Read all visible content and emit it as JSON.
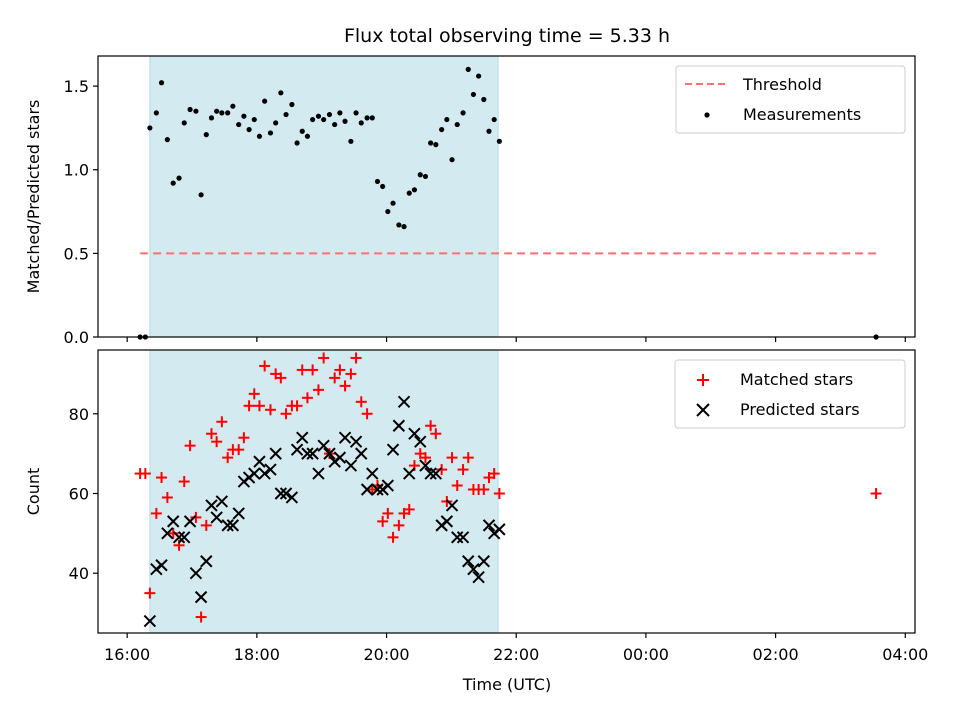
{
  "title": "Flux total observing time = 5.33 h",
  "colors": {
    "band": "#d4eaf1",
    "threshold": "#ff6f6f",
    "matched": "#ff0000",
    "predicted": "#000000",
    "measurement": "#000000"
  },
  "chart_data": [
    {
      "type": "scatter",
      "panel": "top",
      "ylabel": "Matched/Predicted stars",
      "xlabel": "",
      "ylim": [
        0,
        1.68
      ],
      "yticks": [
        0.0,
        0.5,
        1.0,
        1.5
      ],
      "ytick_labels": [
        "0.0",
        "0.5",
        "1.0",
        "1.5"
      ],
      "xlim_hours": [
        15.55,
        28.15
      ],
      "shaded_span_hours": [
        16.35,
        21.72
      ],
      "threshold": {
        "name": "Threshold",
        "y": 0.5,
        "x_start_hours": 16.2,
        "x_end_hours": 27.55,
        "style": "dashed"
      },
      "series": [
        {
          "name": "Measurements",
          "points": [
            [
              16.2,
              0.0
            ],
            [
              16.28,
              0.0
            ],
            [
              16.35,
              1.25
            ],
            [
              16.45,
              1.34
            ],
            [
              16.53,
              1.52
            ],
            [
              16.62,
              1.18
            ],
            [
              16.71,
              0.92
            ],
            [
              16.8,
              0.95
            ],
            [
              16.88,
              1.28
            ],
            [
              16.97,
              1.36
            ],
            [
              17.06,
              1.35
            ],
            [
              17.14,
              0.85
            ],
            [
              17.22,
              1.21
            ],
            [
              17.3,
              1.31
            ],
            [
              17.38,
              1.35
            ],
            [
              17.46,
              1.34
            ],
            [
              17.55,
              1.34
            ],
            [
              17.63,
              1.38
            ],
            [
              17.72,
              1.27
            ],
            [
              17.8,
              1.32
            ],
            [
              17.88,
              1.24
            ],
            [
              17.96,
              1.3
            ],
            [
              18.04,
              1.2
            ],
            [
              18.12,
              1.41
            ],
            [
              18.21,
              1.22
            ],
            [
              18.29,
              1.28
            ],
            [
              18.37,
              1.46
            ],
            [
              18.45,
              1.33
            ],
            [
              18.54,
              1.39
            ],
            [
              18.62,
              1.16
            ],
            [
              18.7,
              1.23
            ],
            [
              18.78,
              1.2
            ],
            [
              18.86,
              1.3
            ],
            [
              18.95,
              1.32
            ],
            [
              19.03,
              1.3
            ],
            [
              19.12,
              1.33
            ],
            [
              19.2,
              1.27
            ],
            [
              19.28,
              1.34
            ],
            [
              19.36,
              1.29
            ],
            [
              19.45,
              1.17
            ],
            [
              19.53,
              1.34
            ],
            [
              19.61,
              1.28
            ],
            [
              19.7,
              1.31
            ],
            [
              19.78,
              1.31
            ],
            [
              19.86,
              0.93
            ],
            [
              19.94,
              0.9
            ],
            [
              20.02,
              0.75
            ],
            [
              20.1,
              0.8
            ],
            [
              20.19,
              0.67
            ],
            [
              20.27,
              0.66
            ],
            [
              20.35,
              0.86
            ],
            [
              20.43,
              0.88
            ],
            [
              20.52,
              0.97
            ],
            [
              20.6,
              0.96
            ],
            [
              20.68,
              1.16
            ],
            [
              20.76,
              1.15
            ],
            [
              20.85,
              1.24
            ],
            [
              20.93,
              1.3
            ],
            [
              21.01,
              1.06
            ],
            [
              21.09,
              1.27
            ],
            [
              21.18,
              1.34
            ],
            [
              21.26,
              1.6
            ],
            [
              21.34,
              1.45
            ],
            [
              21.42,
              1.56
            ],
            [
              21.5,
              1.42
            ],
            [
              21.58,
              1.23
            ],
            [
              21.66,
              1.3
            ],
            [
              21.74,
              1.17
            ],
            [
              27.55,
              0.0
            ]
          ]
        }
      ]
    },
    {
      "type": "scatter",
      "panel": "bottom",
      "xlabel": "Time (UTC)",
      "ylabel": "Count",
      "ylim": [
        25,
        96
      ],
      "yticks": [
        40,
        60,
        80
      ],
      "ytick_labels": [
        "40",
        "60",
        "80"
      ],
      "xlim_hours": [
        15.55,
        28.15
      ],
      "xticks_hours": [
        16,
        18,
        20,
        22,
        24,
        26,
        28
      ],
      "xtick_labels": [
        "16:00",
        "18:00",
        "20:00",
        "22:00",
        "00:00",
        "02:00",
        "04:00"
      ],
      "shaded_span_hours": [
        16.35,
        21.72
      ],
      "series": [
        {
          "name": "Matched stars",
          "marker": "+",
          "points": [
            [
              16.2,
              65
            ],
            [
              16.28,
              65
            ],
            [
              16.35,
              35
            ],
            [
              16.45,
              55
            ],
            [
              16.53,
              64
            ],
            [
              16.62,
              59
            ],
            [
              16.71,
              50
            ],
            [
              16.8,
              47
            ],
            [
              16.88,
              63
            ],
            [
              16.97,
              72
            ],
            [
              17.06,
              54
            ],
            [
              17.14,
              29
            ],
            [
              17.22,
              52
            ],
            [
              17.3,
              75
            ],
            [
              17.38,
              73
            ],
            [
              17.46,
              78
            ],
            [
              17.55,
              69
            ],
            [
              17.63,
              71
            ],
            [
              17.72,
              71
            ],
            [
              17.8,
              74
            ],
            [
              17.88,
              82
            ],
            [
              17.96,
              85
            ],
            [
              18.04,
              82
            ],
            [
              18.12,
              92
            ],
            [
              18.21,
              81
            ],
            [
              18.29,
              90
            ],
            [
              18.37,
              89
            ],
            [
              18.45,
              80
            ],
            [
              18.54,
              82
            ],
            [
              18.62,
              82
            ],
            [
              18.7,
              91
            ],
            [
              18.78,
              84
            ],
            [
              18.86,
              91
            ],
            [
              18.95,
              86
            ],
            [
              19.03,
              94
            ],
            [
              19.12,
              70
            ],
            [
              19.2,
              89
            ],
            [
              19.28,
              91
            ],
            [
              19.36,
              87
            ],
            [
              19.45,
              90
            ],
            [
              19.53,
              94
            ],
            [
              19.61,
              83
            ],
            [
              19.7,
              80
            ],
            [
              19.78,
              61
            ],
            [
              19.86,
              62
            ],
            [
              19.94,
              53
            ],
            [
              20.02,
              55
            ],
            [
              20.1,
              49
            ],
            [
              20.19,
              52
            ],
            [
              20.27,
              55
            ],
            [
              20.35,
              56
            ],
            [
              20.43,
              67
            ],
            [
              20.52,
              70
            ],
            [
              20.6,
              69
            ],
            [
              20.68,
              77
            ],
            [
              20.76,
              75
            ],
            [
              20.85,
              66
            ],
            [
              20.93,
              58
            ],
            [
              21.01,
              69
            ],
            [
              21.09,
              62
            ],
            [
              21.18,
              66
            ],
            [
              21.26,
              69
            ],
            [
              21.34,
              61
            ],
            [
              21.42,
              61
            ],
            [
              21.5,
              61
            ],
            [
              21.58,
              64
            ],
            [
              21.66,
              65
            ],
            [
              21.74,
              60
            ],
            [
              27.55,
              60
            ]
          ]
        },
        {
          "name": "Predicted stars",
          "marker": "x",
          "points": [
            [
              16.35,
              28
            ],
            [
              16.45,
              41
            ],
            [
              16.53,
              42
            ],
            [
              16.62,
              50
            ],
            [
              16.71,
              53
            ],
            [
              16.8,
              49
            ],
            [
              16.88,
              49
            ],
            [
              16.97,
              53
            ],
            [
              17.06,
              40
            ],
            [
              17.14,
              34
            ],
            [
              17.22,
              43
            ],
            [
              17.3,
              57
            ],
            [
              17.38,
              54
            ],
            [
              17.46,
              58
            ],
            [
              17.55,
              52
            ],
            [
              17.63,
              52
            ],
            [
              17.72,
              55
            ],
            [
              17.8,
              63
            ],
            [
              17.88,
              64
            ],
            [
              17.96,
              65
            ],
            [
              18.04,
              68
            ],
            [
              18.12,
              65
            ],
            [
              18.21,
              66
            ],
            [
              18.29,
              70
            ],
            [
              18.37,
              60
            ],
            [
              18.45,
              60
            ],
            [
              18.54,
              59
            ],
            [
              18.62,
              71
            ],
            [
              18.7,
              74
            ],
            [
              18.78,
              70
            ],
            [
              18.86,
              70
            ],
            [
              18.95,
              65
            ],
            [
              19.03,
              72
            ],
            [
              19.12,
              70
            ],
            [
              19.2,
              68
            ],
            [
              19.28,
              69
            ],
            [
              19.36,
              74
            ],
            [
              19.45,
              67
            ],
            [
              19.53,
              73
            ],
            [
              19.61,
              70
            ],
            [
              19.7,
              61
            ],
            [
              19.78,
              65
            ],
            [
              19.86,
              61
            ],
            [
              19.94,
              61
            ],
            [
              20.02,
              62
            ],
            [
              20.1,
              71
            ],
            [
              20.19,
              77
            ],
            [
              20.27,
              83
            ],
            [
              20.35,
              65
            ],
            [
              20.43,
              75
            ],
            [
              20.52,
              73
            ],
            [
              20.6,
              67
            ],
            [
              20.68,
              65
            ],
            [
              20.76,
              65
            ],
            [
              20.85,
              52
            ],
            [
              20.93,
              53
            ],
            [
              21.01,
              57
            ],
            [
              21.09,
              49
            ],
            [
              21.18,
              49
            ],
            [
              21.26,
              43
            ],
            [
              21.34,
              41
            ],
            [
              21.42,
              39
            ],
            [
              21.5,
              43
            ],
            [
              21.58,
              52
            ],
            [
              21.66,
              50
            ],
            [
              21.74,
              51
            ]
          ]
        }
      ]
    }
  ]
}
